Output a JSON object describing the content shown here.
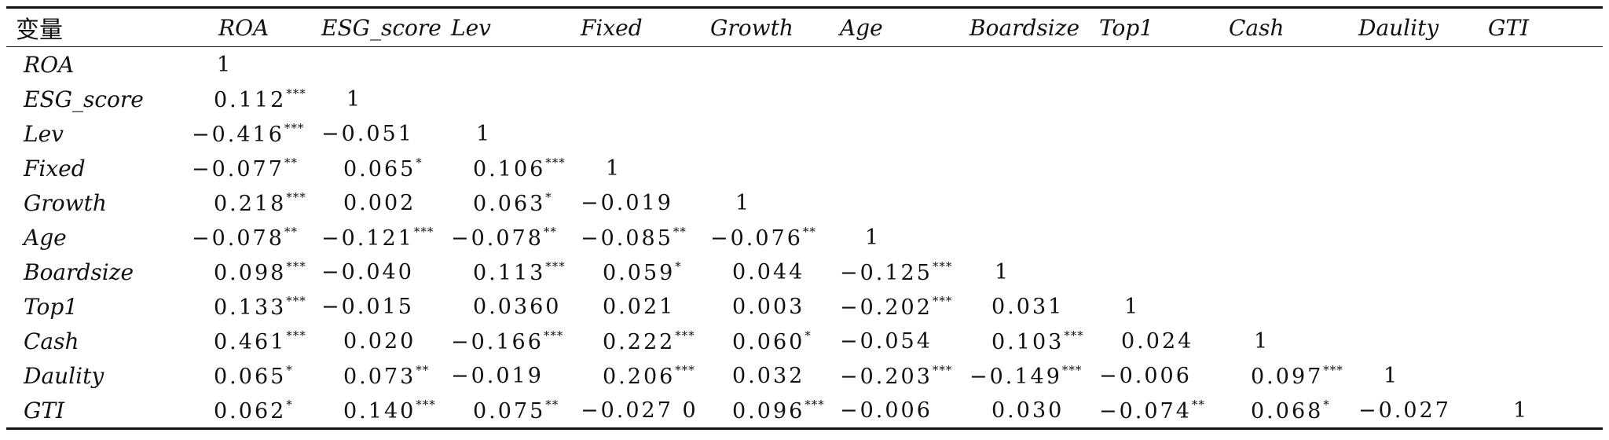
{
  "table": {
    "var_header": "变量",
    "columns": [
      "ROA",
      "ESG_score",
      "Lev",
      "Fixed",
      "Growth",
      "Age",
      "Boardsize",
      "Top1",
      "Cash",
      "Daulity",
      "GTI"
    ],
    "rows": [
      {
        "label": "ROA",
        "cells": [
          {
            "v": "1",
            "s": ""
          }
        ]
      },
      {
        "label": "ESG_score",
        "cells": [
          {
            "v": "0.112",
            "s": "***"
          },
          {
            "v": "1",
            "s": ""
          }
        ]
      },
      {
        "label": "Lev",
        "cells": [
          {
            "v": "−0.416",
            "s": "***"
          },
          {
            "v": "−0.051",
            "s": ""
          },
          {
            "v": "1",
            "s": ""
          }
        ]
      },
      {
        "label": "Fixed",
        "cells": [
          {
            "v": "−0.077",
            "s": "**"
          },
          {
            "v": "0.065",
            "s": "*"
          },
          {
            "v": "0.106",
            "s": "***"
          },
          {
            "v": "1",
            "s": ""
          }
        ]
      },
      {
        "label": "Growth",
        "cells": [
          {
            "v": "0.218",
            "s": "***"
          },
          {
            "v": "0.002",
            "s": ""
          },
          {
            "v": "0.063",
            "s": "*"
          },
          {
            "v": "−0.019",
            "s": ""
          },
          {
            "v": "1",
            "s": ""
          }
        ]
      },
      {
        "label": "Age",
        "cells": [
          {
            "v": "−0.078",
            "s": "**"
          },
          {
            "v": "−0.121",
            "s": "***"
          },
          {
            "v": "−0.078",
            "s": "**"
          },
          {
            "v": "−0.085",
            "s": "**"
          },
          {
            "v": "−0.076",
            "s": "**"
          },
          {
            "v": "1",
            "s": ""
          }
        ]
      },
      {
        "label": "Boardsize",
        "cells": [
          {
            "v": "0.098",
            "s": "***"
          },
          {
            "v": "−0.040",
            "s": ""
          },
          {
            "v": "0.113",
            "s": "***"
          },
          {
            "v": "0.059",
            "s": "*"
          },
          {
            "v": "0.044",
            "s": ""
          },
          {
            "v": "−0.125",
            "s": "***"
          },
          {
            "v": "1",
            "s": ""
          }
        ]
      },
      {
        "label": "Top1",
        "cells": [
          {
            "v": "0.133",
            "s": "***"
          },
          {
            "v": "−0.015",
            "s": ""
          },
          {
            "v": "0.0360",
            "s": ""
          },
          {
            "v": "0.021",
            "s": ""
          },
          {
            "v": "0.003",
            "s": ""
          },
          {
            "v": "−0.202",
            "s": "***"
          },
          {
            "v": "0.031",
            "s": ""
          },
          {
            "v": "1",
            "s": ""
          }
        ]
      },
      {
        "label": "Cash",
        "cells": [
          {
            "v": "0.461",
            "s": "***"
          },
          {
            "v": "0.020",
            "s": ""
          },
          {
            "v": "−0.166",
            "s": "***"
          },
          {
            "v": "0.222",
            "s": "***"
          },
          {
            "v": "0.060",
            "s": "*"
          },
          {
            "v": "−0.054",
            "s": ""
          },
          {
            "v": "0.103",
            "s": "***"
          },
          {
            "v": "0.024",
            "s": ""
          },
          {
            "v": "1",
            "s": ""
          }
        ]
      },
      {
        "label": "Daulity",
        "cells": [
          {
            "v": "0.065",
            "s": "*"
          },
          {
            "v": "0.073",
            "s": "**"
          },
          {
            "v": "−0.019",
            "s": ""
          },
          {
            "v": "0.206",
            "s": "***"
          },
          {
            "v": "0.032",
            "s": ""
          },
          {
            "v": "−0.203",
            "s": "***"
          },
          {
            "v": "−0.149",
            "s": "***"
          },
          {
            "v": "−0.006",
            "s": ""
          },
          {
            "v": "0.097",
            "s": "***"
          },
          {
            "v": "1",
            "s": ""
          }
        ]
      },
      {
        "label": "GTI",
        "cells": [
          {
            "v": "0.062",
            "s": "*"
          },
          {
            "v": "0.140",
            "s": "***"
          },
          {
            "v": "0.075",
            "s": "**"
          },
          {
            "v": "−0.027 0",
            "s": ""
          },
          {
            "v": "0.096",
            "s": "***"
          },
          {
            "v": "−0.006",
            "s": ""
          },
          {
            "v": "0.030",
            "s": ""
          },
          {
            "v": "−0.074",
            "s": "**"
          },
          {
            "v": "0.068",
            "s": "*"
          },
          {
            "v": "−0.027",
            "s": ""
          },
          {
            "v": "1",
            "s": ""
          }
        ]
      }
    ]
  }
}
